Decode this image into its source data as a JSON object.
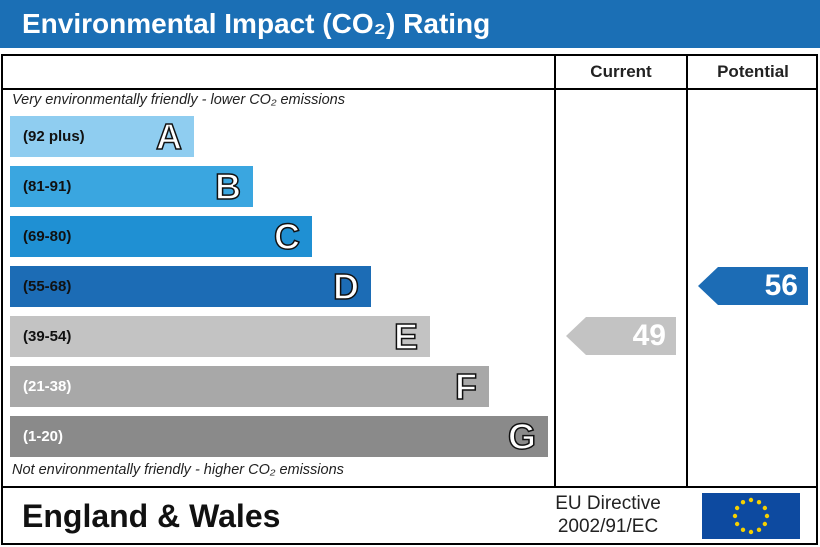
{
  "header": {
    "title": "Environmental Impact (CO₂) Rating"
  },
  "columns": {
    "current": "Current",
    "potential": "Potential"
  },
  "notes": {
    "top": "Very environmentally friendly - lower CO₂ emissions",
    "bottom": "Not environmentally friendly - higher CO₂ emissions"
  },
  "chart_data": {
    "type": "bar",
    "title": "Environmental Impact (CO₂) Rating",
    "bands": [
      {
        "letter": "A",
        "range": "(92 plus)",
        "color": "#8fcdf0",
        "text_color": "#111111"
      },
      {
        "letter": "B",
        "range": "(81-91)",
        "color": "#3aa6e0",
        "text_color": "#111111"
      },
      {
        "letter": "C",
        "range": "(69-80)",
        "color": "#1f90d3",
        "text_color": "#111111"
      },
      {
        "letter": "D",
        "range": "(55-68)",
        "color": "#1c6cb5",
        "text_color": "#111111"
      },
      {
        "letter": "E",
        "range": "(39-54)",
        "color": "#c3c3c3",
        "text_color": "#111111"
      },
      {
        "letter": "F",
        "range": "(21-38)",
        "color": "#a8a8a8",
        "text_color": "#ffffff"
      },
      {
        "letter": "G",
        "range": "(1-20)",
        "color": "#8a8a8a",
        "text_color": "#ffffff"
      }
    ],
    "current": {
      "value": 49,
      "band": "E",
      "color": "#c3c3c3"
    },
    "potential": {
      "value": 56,
      "band": "D",
      "color": "#1c6cb5"
    }
  },
  "footer": {
    "region": "England & Wales",
    "directive_line1": "EU Directive",
    "directive_line2": "2002/91/EC"
  }
}
